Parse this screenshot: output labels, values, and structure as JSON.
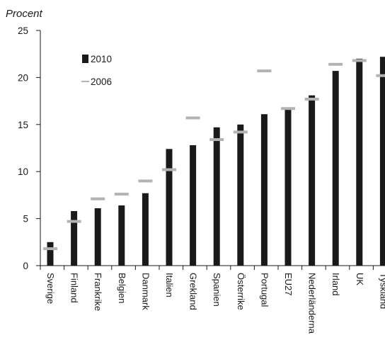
{
  "chart_data": {
    "type": "bar",
    "ylabel": "Procent",
    "ylim": [
      0,
      25
    ],
    "yticks": [
      "0",
      "5",
      "10",
      "15",
      "20",
      "25"
    ],
    "grid": false,
    "legend_position": "top-left",
    "categories": [
      "Sverige",
      "Finland",
      "Frankrike",
      "Belgien",
      "Danmark",
      "Italien",
      "Grekland",
      "Spanien",
      "Österrike",
      "Portugal",
      "EU27",
      "Nederländerna",
      "Irland",
      "UK",
      "Tyskland"
    ],
    "series": [
      {
        "name": "2010",
        "mark": "bar",
        "color": "#1a1a1a",
        "values": [
          2.5,
          5.8,
          6.1,
          6.4,
          7.7,
          12.4,
          12.8,
          14.7,
          15.0,
          16.1,
          16.8,
          18.1,
          20.7,
          22.0,
          22.2
        ]
      },
      {
        "name": "2006",
        "mark": "dash",
        "color": "#b3b3b3",
        "values": [
          1.8,
          4.7,
          7.1,
          7.6,
          9.0,
          10.2,
          15.7,
          13.4,
          14.2,
          20.7,
          16.7,
          17.7,
          21.4,
          21.8,
          20.2
        ]
      }
    ]
  }
}
